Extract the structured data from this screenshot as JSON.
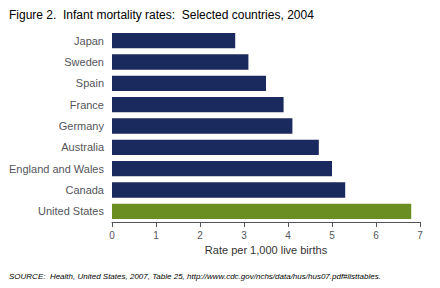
{
  "chart_data": {
    "type": "bar",
    "orientation": "horizontal",
    "title": "Figure 2.  Infant mortality rates:  Selected countries, 2004",
    "categories": [
      "Japan",
      "Sweden",
      "Spain",
      "France",
      "Germany",
      "Australia",
      "England and Wales",
      "Canada",
      "United States"
    ],
    "values": [
      2.8,
      3.1,
      3.5,
      3.9,
      4.1,
      4.7,
      5.0,
      5.3,
      6.8
    ],
    "colors": [
      "#1a2a5e",
      "#1a2a5e",
      "#1a2a5e",
      "#1a2a5e",
      "#1a2a5e",
      "#1a2a5e",
      "#1a2a5e",
      "#1a2a5e",
      "#6b8e23"
    ],
    "xlabel": "Rate per 1,000 live births",
    "xlim": [
      0,
      7
    ],
    "xticks": [
      0,
      1,
      2,
      3,
      4,
      5,
      6,
      7
    ],
    "annotation": "SOURCE:  Health, United States, 2007, Table 25, http://www.cdc.gov/nchs/data/hus/hus07.pdf#listtables.",
    "grid": false
  }
}
